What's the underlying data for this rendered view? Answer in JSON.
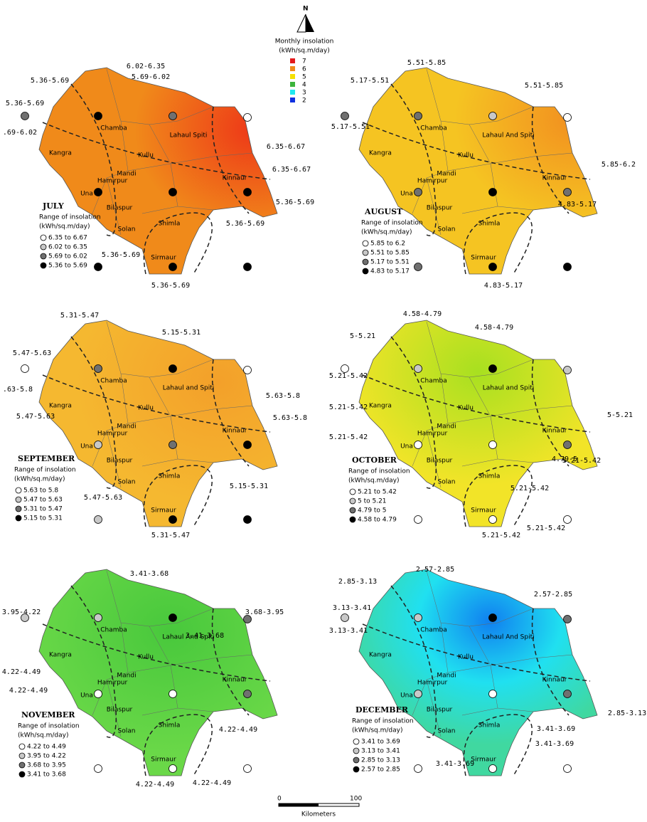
{
  "header": {
    "north": "N",
    "legend_title": "Monthly insolation",
    "legend_unit": "(kWh/sq.m/day)",
    "legend_items": [
      {
        "label": "7",
        "color": "#e31a1c"
      },
      {
        "label": "6",
        "color": "#f08a1a"
      },
      {
        "label": "5",
        "color": "#f5e000"
      },
      {
        "label": "4",
        "color": "#3cb43c"
      },
      {
        "label": "3",
        "color": "#20e8f0"
      },
      {
        "label": "2",
        "color": "#1030e0"
      }
    ]
  },
  "panels": [
    {
      "month": "JULY",
      "legend_title": "Range of insolation",
      "legend_unit": "(kWh/sq.m/day)",
      "ranges": [
        "6.35 to 6.67",
        "6.02 to 6.35",
        "5.69 to 6.02",
        "5.36 to 5.69"
      ],
      "districts": [
        "Chamba",
        "Lahaul Spiti",
        "Kangra",
        "Kullu",
        "Mandi",
        "Hamirpur",
        "Kinnaur",
        "Una",
        "Bilaspur",
        "Solan",
        "Shimla",
        "Sirmaur"
      ],
      "contours": [
        "6.02-6.35",
        "5.69-6.02",
        "5.36-5.69",
        "5.36-5.69",
        ".69-6.02",
        "6.35-6.67",
        "6.35-6.67",
        "5.36-5.69",
        "5.36-5.69",
        "5.36-5.69",
        "5.36-5.69"
      ]
    },
    {
      "month": "AUGUST",
      "legend_title": "Range of insolation",
      "legend_unit": "(kWh/sq.m/day)",
      "ranges": [
        "5.85 to 6.2",
        "5.51 to 5.85",
        "5.17 to 5.51",
        "4.83 to 5.17"
      ],
      "districts": [
        "Chamba",
        "Lahaul And Spiti",
        "Kangra",
        "Kullu",
        "Mandi",
        "Hamirpur",
        "Kinnaur",
        "Una",
        "Bilaspur",
        "Solan",
        "Shimla",
        "Sirmaur"
      ],
      "contours": [
        "5.51-5.85",
        "5.17-5.51",
        "5.51-5.85",
        "5.17-5.51",
        "5.85-6.2",
        "4.83-5.17",
        "4.83-5.17"
      ]
    },
    {
      "month": "SEPTEMBER",
      "legend_title": "Range of insolation",
      "legend_unit": "(kWh/sq.m/day)",
      "ranges": [
        "5.63 to 5.8",
        "5.47 to 5.63",
        "5.31 to 5.47",
        "5.15 to 5.31"
      ],
      "districts": [
        "Chamba",
        "Lahaul and Spiti",
        "Kangra",
        "Kullu",
        "Mandi",
        "Hamirpur",
        "Kinnaur",
        "Una",
        "Bilaspur",
        "Solan",
        "Shimla",
        "Sirmaur"
      ],
      "contours": [
        "5.31-5.47",
        "5.15-5.31",
        "5.47-5.63",
        ".63-5.8",
        "5.63-5.8",
        "5.47-5.63",
        "5.63-5.8",
        "5.47-5.63",
        "5.15-5.31",
        "5.31-5.47"
      ]
    },
    {
      "month": "OCTOBER",
      "legend_title": "Range of insolation",
      "legend_unit": "(kWh/sq.m/day)",
      "ranges": [
        "5.21 to 5.42",
        "5 to 5.21",
        "4.79 to 5",
        "4.58 to 4.79"
      ],
      "districts": [
        "Chamba",
        "Lahaul and Spiti",
        "Kangra",
        "Kullu",
        "Mandi",
        "Hamirpur",
        "Kinnaur",
        "Una",
        "Bilaspur",
        "Solan",
        "Shimla",
        "Sirmaur"
      ],
      "contours": [
        "4.58-4.79",
        "4.58-4.79",
        "5-5.21",
        "5.21-5.42",
        "5.21-5.42",
        "5-5.21",
        "5.21-5.42",
        "4.79-5",
        "5.21-5.42",
        "5.21-5.42",
        "5.21-5.42",
        "5.21-5.42"
      ]
    },
    {
      "month": "NOVEMBER",
      "legend_title": "Range of insolation",
      "legend_unit": "(kWh/sq.m/day)",
      "ranges": [
        "4.22 to 4.49",
        "3.95 to 4.22",
        "3.68 to 3.95",
        "3.41 to 3.68"
      ],
      "districts": [
        "Chamba",
        "Lahaul And Spiti",
        "Kangra",
        "Kullu",
        "Mandi",
        "Hamirpur",
        "Kinnaur",
        "Una",
        "Bilaspur",
        "Solan",
        "Shimla",
        "Sirmaur"
      ],
      "contours": [
        "3.41-3.68",
        "3.68-3.95",
        "3.41-3.68",
        "3.95-4.22",
        "4.22-4.49",
        "4.22-4.49",
        "4.22-4.49",
        "4.22-4.49",
        "4.22-4.49"
      ]
    },
    {
      "month": "DECEMBER",
      "legend_title": "Range of insolation",
      "legend_unit": "(kWh/sq.m/day)",
      "ranges": [
        "3.41 to 3.69",
        "3.13 to 3.41",
        "2.85 to 3.13",
        "2.57 to 2.85"
      ],
      "districts": [
        "Chamba",
        "Lahaul And Spiti",
        "Kangra",
        "Kullu",
        "Mandi",
        "Hamirpur",
        "Kinnaur",
        "Una",
        "Bilaspur",
        "Solan",
        "Shimla",
        "Sirmaur"
      ],
      "contours": [
        "2.57-2.85",
        "2.85-3.13",
        "2.57-2.85",
        "3.13-3.41",
        "3.13-3.41",
        "2.85-3.13",
        "3.41-3.69",
        "3.41-3.69",
        "3.41-3.69"
      ]
    }
  ],
  "scale": {
    "start": "0",
    "end": "100",
    "unit": "Kilometers"
  }
}
